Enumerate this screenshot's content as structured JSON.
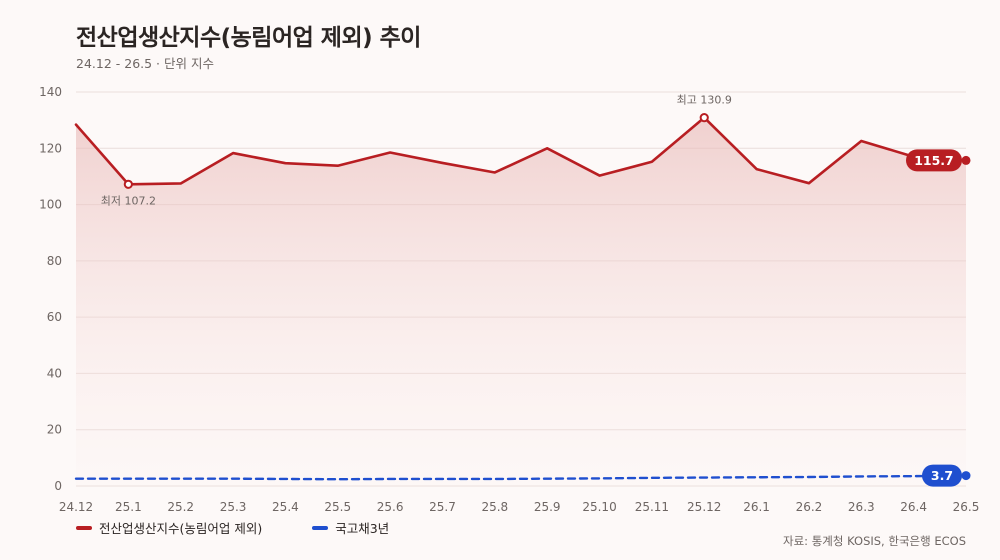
{
  "title": "전산업생산지수(농림어업 제외) 추이",
  "subtitle": "24.12 - 26.5 · 단위 지수",
  "source": "자료: 통계청 KOSIS, 한국은행 ECOS",
  "chart_data": {
    "type": "line",
    "categories": [
      "24.12",
      "25.1",
      "25.2",
      "25.3",
      "25.4",
      "25.5",
      "25.6",
      "25.7",
      "25.8",
      "25.9",
      "25.10",
      "25.11",
      "25.12",
      "26.1",
      "26.2",
      "26.3",
      "26.4",
      "26.5"
    ],
    "yticks": [
      0,
      20,
      40,
      60,
      80,
      100,
      120,
      140
    ],
    "ylim": [
      0,
      140
    ],
    "grid": true,
    "legend": "bottom-left",
    "series": [
      {
        "name": "전산업생산지수(농림어업 제외)",
        "color": "#b81e22",
        "values": [
          128.4,
          107.2,
          107.5,
          118.3,
          114.7,
          113.8,
          118.5,
          114.8,
          111.4,
          120.0,
          110.3,
          115.2,
          130.9,
          112.6,
          107.6,
          122.6,
          117.0,
          115.7
        ]
      },
      {
        "name": "국고채3년",
        "color": "#1f4fcf",
        "values": [
          2.6,
          2.6,
          2.6,
          2.6,
          2.5,
          2.4,
          2.5,
          2.5,
          2.5,
          2.6,
          2.7,
          2.9,
          3.0,
          3.1,
          3.2,
          3.4,
          3.5,
          3.7
        ]
      }
    ],
    "annotations": [
      {
        "label": "최저 107.2",
        "index": 1,
        "series": 0,
        "pos": "below"
      },
      {
        "label": "최고 130.9",
        "index": 12,
        "series": 0,
        "pos": "above"
      }
    ],
    "end_labels": [
      "115.7",
      "3.7"
    ]
  }
}
